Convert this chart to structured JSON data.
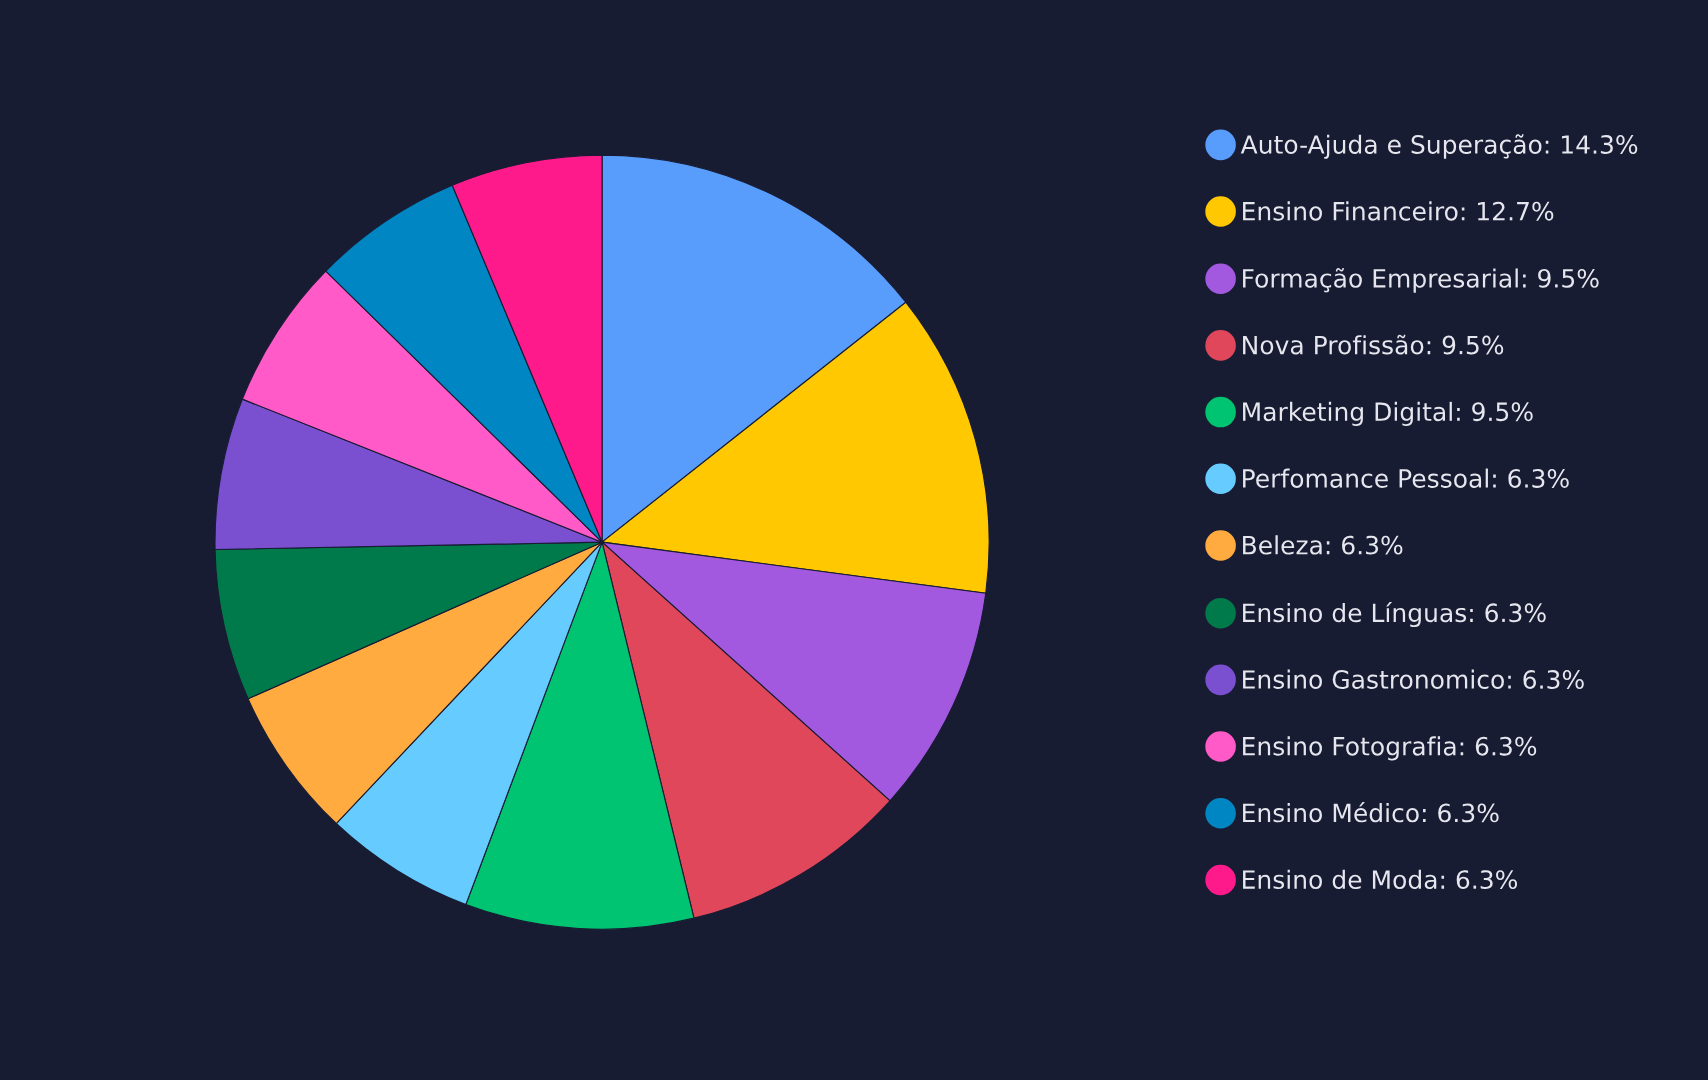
{
  "chart_data": {
    "type": "pie",
    "categories": [
      "Auto-Ajuda e Superação",
      "Ensino Financeiro",
      "Formação Empresarial",
      "Nova Profissão",
      "Marketing Digital",
      "Perfomance Pessoal",
      "Beleza",
      "Ensino de Línguas",
      "Ensino Gastronomico",
      "Ensino Fotografia",
      "Ensino Médico",
      "Ensino de Moda"
    ],
    "values": [
      14.3,
      12.7,
      9.5,
      9.5,
      9.5,
      6.3,
      6.3,
      6.3,
      6.3,
      6.3,
      6.3,
      6.3
    ],
    "value_labels": [
      "14.3%",
      "12.7%",
      "9.5%",
      "9.5%",
      "9.5%",
      "6.3%",
      "6.3%",
      "6.3%",
      "6.3%",
      "6.3%",
      "6.3%",
      "6.3%"
    ],
    "colors": [
      "#589cfc",
      "#ffc800",
      "#a259e0",
      "#e0475a",
      "#00c471",
      "#66ccff",
      "#ffab40",
      "#007a4a",
      "#7a4fd0",
      "#ff5ac8",
      "#0086c2",
      "#ff1a8c"
    ],
    "legend": "right"
  }
}
